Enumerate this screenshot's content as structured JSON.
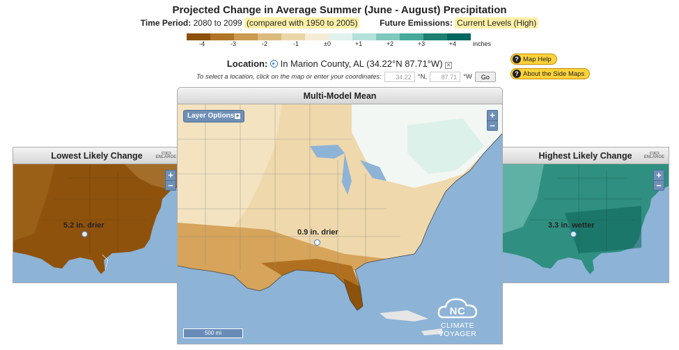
{
  "header": {
    "title": "Projected Change in Average Summer (June - August) Precipitation",
    "time_period_label": "Time Period:",
    "time_period_value": "2080 to 2099",
    "comparison": "(compared with 1950 to 2005)",
    "emissions_label": "Future Emissions:",
    "emissions_value": "Current Levels (High)"
  },
  "legend": {
    "colors": [
      "#8c510a",
      "#b07427",
      "#c99a4f",
      "#dcbc7e",
      "#ead6a9",
      "#f6ecd6",
      "#e0f1ee",
      "#b4e1da",
      "#7fc8bd",
      "#48a89b",
      "#1e7f73",
      "#01665e"
    ],
    "ticks": [
      "-4",
      "-3",
      "-2",
      "-1",
      "±0",
      "+1",
      "+2",
      "+3",
      "+4"
    ],
    "units": "inches"
  },
  "location": {
    "label": "Location:",
    "text": "In Marion County, AL (34.22°N 87.71°W)",
    "instructions": "To select a location, click on the map or enter your coordinates:",
    "lat": "34.22",
    "lat_unit": "°N,",
    "lon": "87.71",
    "lon_unit": "°W",
    "go": "Go"
  },
  "help": {
    "map_help": "Map Help",
    "side_maps": "About the Side Maps"
  },
  "panels": {
    "center": {
      "title": "Multi-Model Mean",
      "layer_options": "Layer Options",
      "value_label": "0.9 in. drier",
      "scale": "500 mi",
      "logo": "CLIMATE VOYAGER",
      "logo_initials": "NC"
    },
    "left": {
      "title": "Lowest Likely Change",
      "enlarge": "ENLARGE",
      "value_label": "5.2 in. drier"
    },
    "right": {
      "title": "Highest Likely Change",
      "enlarge": "ENLARGE",
      "value_label": "3.3 in. wetter"
    }
  },
  "controls": {
    "zoom_in": "+",
    "zoom_out": "−",
    "close_glyph": "✕",
    "help_glyph": "?",
    "layer_toggle": "+"
  },
  "icons": {
    "location": "location-pin-icon",
    "clear": "close-box-icon",
    "help": "question-icon",
    "enlarge": "enlarge-icon"
  }
}
